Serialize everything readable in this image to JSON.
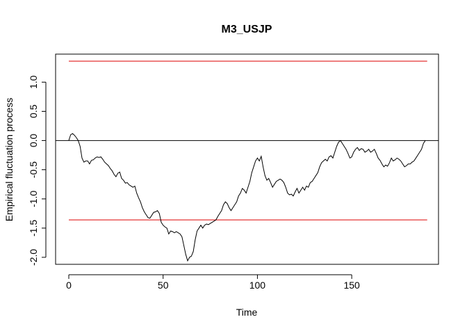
{
  "chart_data": {
    "type": "line",
    "title": "M3_USJP",
    "xlabel": "Time",
    "ylabel": "Empirical fluctuation process",
    "xlim": [
      -7,
      196
    ],
    "ylim": [
      -2.12,
      1.48
    ],
    "x_ticks": [
      0,
      50,
      100,
      150
    ],
    "y_ticks": [
      -2.0,
      -1.5,
      -1.0,
      -0.5,
      0.0,
      0.5,
      1.0
    ],
    "y_tick_labels": [
      "-2.0",
      "-1.5",
      "-1.0",
      "-0.5",
      "0.0",
      "0.5",
      "1.0"
    ],
    "grid": false,
    "legend": "none",
    "colors": {
      "process": "#000000",
      "boundary": "#dd0000",
      "zero_line": "#000000"
    },
    "boundaries": {
      "upper": 1.36,
      "lower": -1.36,
      "x_range": [
        0,
        190
      ]
    },
    "zero_line": 0.0,
    "series": [
      {
        "values": [
          [
            0,
            0.0
          ],
          [
            1,
            0.1
          ],
          [
            2,
            0.12
          ],
          [
            3,
            0.09
          ],
          [
            4,
            0.05
          ],
          [
            5,
            0.0
          ],
          [
            6,
            -0.1
          ],
          [
            7,
            -0.3
          ],
          [
            8,
            -0.37
          ],
          [
            9,
            -0.35
          ],
          [
            10,
            -0.35
          ],
          [
            11,
            -0.4
          ],
          [
            12,
            -0.34
          ],
          [
            13,
            -0.33
          ],
          [
            14,
            -0.3
          ],
          [
            15,
            -0.28
          ],
          [
            16,
            -0.29
          ],
          [
            17,
            -0.28
          ],
          [
            18,
            -0.32
          ],
          [
            19,
            -0.37
          ],
          [
            20,
            -0.4
          ],
          [
            21,
            -0.43
          ],
          [
            22,
            -0.48
          ],
          [
            23,
            -0.52
          ],
          [
            24,
            -0.58
          ],
          [
            25,
            -0.62
          ],
          [
            26,
            -0.56
          ],
          [
            27,
            -0.54
          ],
          [
            28,
            -0.65
          ],
          [
            29,
            -0.68
          ],
          [
            30,
            -0.73
          ],
          [
            31,
            -0.72
          ],
          [
            32,
            -0.76
          ],
          [
            33,
            -0.78
          ],
          [
            34,
            -0.8
          ],
          [
            35,
            -0.78
          ],
          [
            36,
            -0.9
          ],
          [
            37,
            -0.98
          ],
          [
            38,
            -1.05
          ],
          [
            39,
            -1.15
          ],
          [
            40,
            -1.22
          ],
          [
            41,
            -1.27
          ],
          [
            42,
            -1.32
          ],
          [
            43,
            -1.33
          ],
          [
            44,
            -1.28
          ],
          [
            45,
            -1.23
          ],
          [
            46,
            -1.22
          ],
          [
            47,
            -1.2
          ],
          [
            48,
            -1.25
          ],
          [
            49,
            -1.4
          ],
          [
            50,
            -1.45
          ],
          [
            51,
            -1.48
          ],
          [
            52,
            -1.5
          ],
          [
            53,
            -1.6
          ],
          [
            54,
            -1.55
          ],
          [
            55,
            -1.56
          ],
          [
            56,
            -1.58
          ],
          [
            57,
            -1.56
          ],
          [
            58,
            -1.58
          ],
          [
            59,
            -1.6
          ],
          [
            60,
            -1.65
          ],
          [
            61,
            -1.8
          ],
          [
            62,
            -1.95
          ],
          [
            63,
            -2.06
          ],
          [
            64,
            -2.0
          ],
          [
            65,
            -1.98
          ],
          [
            66,
            -1.9
          ],
          [
            67,
            -1.7
          ],
          [
            68,
            -1.55
          ],
          [
            69,
            -1.5
          ],
          [
            70,
            -1.45
          ],
          [
            71,
            -1.5
          ],
          [
            72,
            -1.45
          ],
          [
            73,
            -1.43
          ],
          [
            74,
            -1.44
          ],
          [
            75,
            -1.42
          ],
          [
            76,
            -1.4
          ],
          [
            77,
            -1.38
          ],
          [
            78,
            -1.36
          ],
          [
            79,
            -1.3
          ],
          [
            80,
            -1.25
          ],
          [
            81,
            -1.2
          ],
          [
            82,
            -1.1
          ],
          [
            83,
            -1.05
          ],
          [
            84,
            -1.08
          ],
          [
            85,
            -1.15
          ],
          [
            86,
            -1.2
          ],
          [
            87,
            -1.15
          ],
          [
            88,
            -1.1
          ],
          [
            89,
            -1.05
          ],
          [
            90,
            -0.95
          ],
          [
            91,
            -0.9
          ],
          [
            92,
            -0.82
          ],
          [
            93,
            -0.85
          ],
          [
            94,
            -0.9
          ],
          [
            95,
            -0.8
          ],
          [
            96,
            -0.7
          ],
          [
            97,
            -0.55
          ],
          [
            98,
            -0.45
          ],
          [
            99,
            -0.35
          ],
          [
            100,
            -0.3
          ],
          [
            101,
            -0.35
          ],
          [
            102,
            -0.27
          ],
          [
            103,
            -0.45
          ],
          [
            104,
            -0.6
          ],
          [
            105,
            -0.68
          ],
          [
            106,
            -0.65
          ],
          [
            107,
            -0.72
          ],
          [
            108,
            -0.8
          ],
          [
            109,
            -0.75
          ],
          [
            110,
            -0.7
          ],
          [
            111,
            -0.68
          ],
          [
            112,
            -0.66
          ],
          [
            113,
            -0.68
          ],
          [
            114,
            -0.72
          ],
          [
            115,
            -0.8
          ],
          [
            116,
            -0.9
          ],
          [
            117,
            -0.93
          ],
          [
            118,
            -0.92
          ],
          [
            119,
            -0.95
          ],
          [
            120,
            -0.88
          ],
          [
            121,
            -0.82
          ],
          [
            122,
            -0.9
          ],
          [
            123,
            -0.85
          ],
          [
            124,
            -0.8
          ],
          [
            125,
            -0.85
          ],
          [
            126,
            -0.78
          ],
          [
            127,
            -0.8
          ],
          [
            128,
            -0.72
          ],
          [
            129,
            -0.7
          ],
          [
            130,
            -0.65
          ],
          [
            131,
            -0.6
          ],
          [
            132,
            -0.55
          ],
          [
            133,
            -0.45
          ],
          [
            134,
            -0.38
          ],
          [
            135,
            -0.35
          ],
          [
            136,
            -0.32
          ],
          [
            137,
            -0.35
          ],
          [
            138,
            -0.28
          ],
          [
            139,
            -0.26
          ],
          [
            140,
            -0.3
          ],
          [
            141,
            -0.2
          ],
          [
            142,
            -0.1
          ],
          [
            143,
            -0.03
          ],
          [
            144,
            0.0
          ],
          [
            145,
            -0.05
          ],
          [
            146,
            -0.1
          ],
          [
            147,
            -0.15
          ],
          [
            148,
            -0.22
          ],
          [
            149,
            -0.3
          ],
          [
            150,
            -0.28
          ],
          [
            151,
            -0.2
          ],
          [
            152,
            -0.15
          ],
          [
            153,
            -0.12
          ],
          [
            154,
            -0.17
          ],
          [
            155,
            -0.14
          ],
          [
            156,
            -0.15
          ],
          [
            157,
            -0.2
          ],
          [
            158,
            -0.18
          ],
          [
            159,
            -0.15
          ],
          [
            160,
            -0.2
          ],
          [
            161,
            -0.18
          ],
          [
            162,
            -0.15
          ],
          [
            163,
            -0.22
          ],
          [
            164,
            -0.3
          ],
          [
            165,
            -0.34
          ],
          [
            166,
            -0.4
          ],
          [
            167,
            -0.45
          ],
          [
            168,
            -0.42
          ],
          [
            169,
            -0.44
          ],
          [
            170,
            -0.38
          ],
          [
            171,
            -0.3
          ],
          [
            172,
            -0.35
          ],
          [
            173,
            -0.33
          ],
          [
            174,
            -0.3
          ],
          [
            175,
            -0.32
          ],
          [
            176,
            -0.35
          ],
          [
            177,
            -0.4
          ],
          [
            178,
            -0.45
          ],
          [
            179,
            -0.43
          ],
          [
            180,
            -0.4
          ],
          [
            181,
            -0.4
          ],
          [
            182,
            -0.37
          ],
          [
            183,
            -0.35
          ],
          [
            184,
            -0.3
          ],
          [
            185,
            -0.25
          ],
          [
            186,
            -0.2
          ],
          [
            187,
            -0.15
          ],
          [
            188,
            -0.05
          ],
          [
            189,
            0.0
          ]
        ]
      }
    ]
  }
}
